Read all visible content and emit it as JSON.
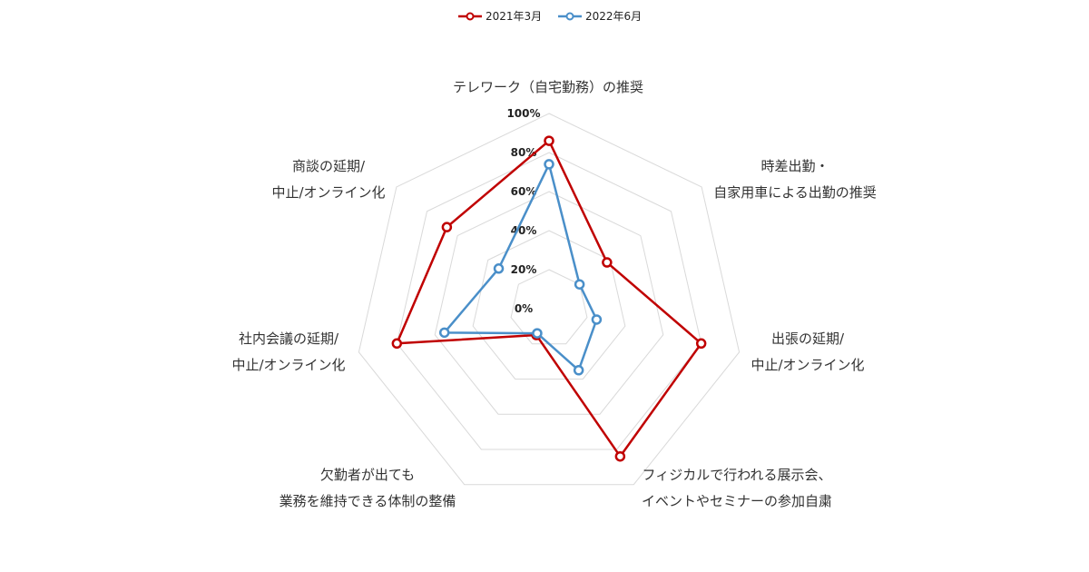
{
  "chart_data": {
    "type": "radar",
    "axes": [
      [
        "テレワーク（自宅勤務）の推奨"
      ],
      [
        "時差出勤・",
        "自家用車による出勤の推奨"
      ],
      [
        "出張の延期/",
        "中止/オンライン化"
      ],
      [
        "フィジカルで行われる展示会、",
        "イベントやセミナーの参加自粛"
      ],
      [
        "欠勤者が出ても",
        "業務を維持できる体制の整備"
      ],
      [
        "社内会議の延期/",
        "中止/オンライン化"
      ],
      [
        "商談の延期/",
        "中止/オンライン化"
      ]
    ],
    "ticks": [
      "0%",
      "20%",
      "40%",
      "60%",
      "80%",
      "100%"
    ],
    "range": [
      0,
      100
    ],
    "grid": true,
    "legend_position": "top",
    "series": [
      {
        "name": "2021年3月",
        "color": "#c00000",
        "values": [
          86,
          38,
          80,
          84,
          15,
          80,
          67
        ]
      },
      {
        "name": "2022年6月",
        "color": "#4a8fc9",
        "values": [
          74,
          20,
          25,
          35,
          14,
          55,
          33
        ]
      }
    ]
  }
}
